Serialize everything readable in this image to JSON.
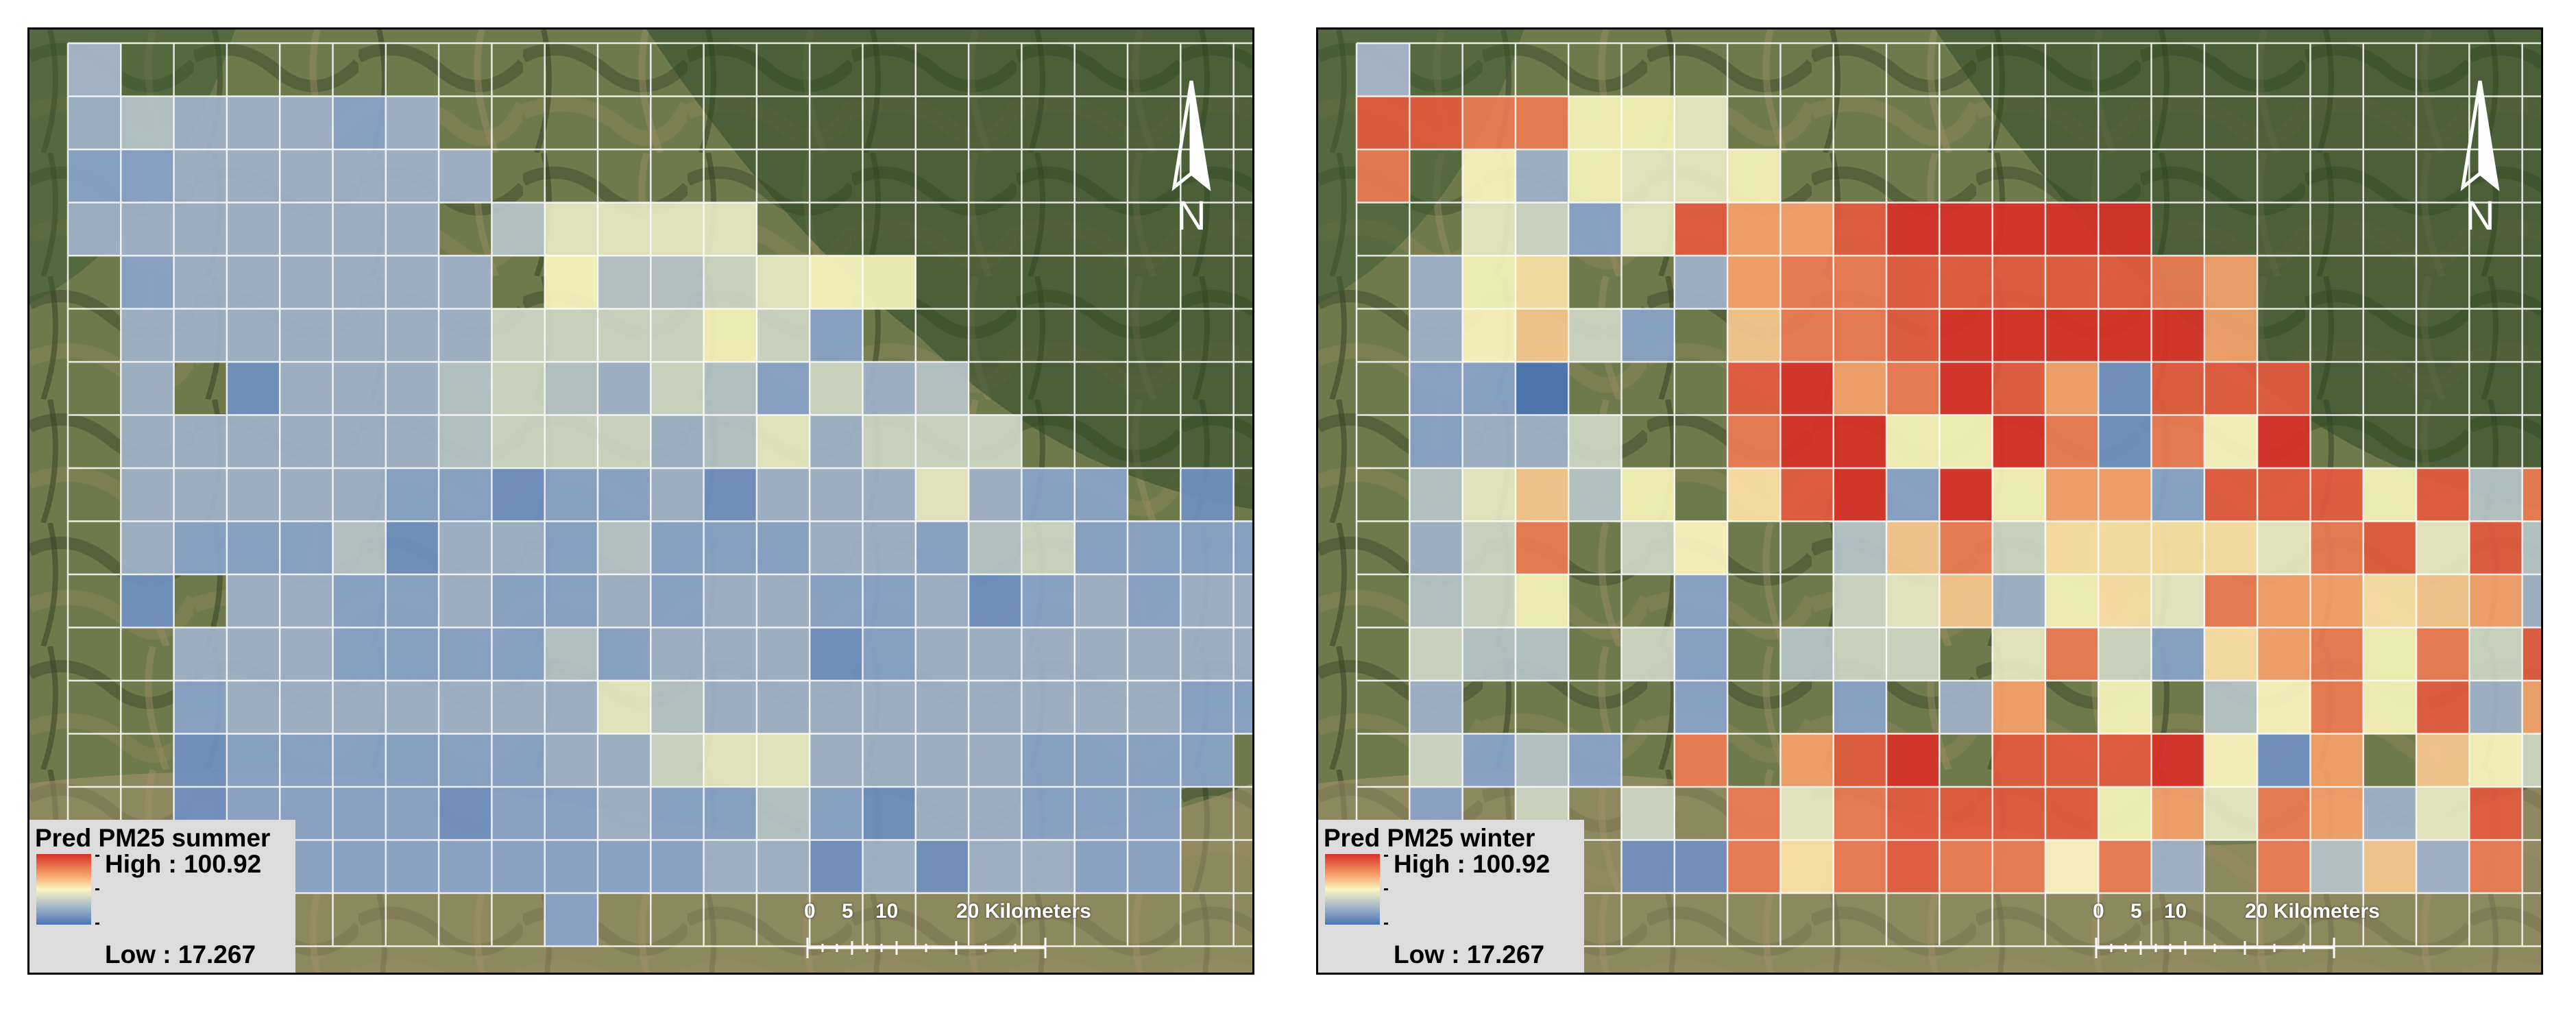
{
  "panels": [
    {
      "legend_title": "Pred PM25 summer",
      "high_label": "High : 100.92",
      "low_label": "Low : 17.267",
      "north_label": "N",
      "scale_labels": [
        "0",
        "5",
        "10",
        "20 Kilometers"
      ],
      "grid": [
        "o.......................",
        "3433323..................",
        "22333333.................",
        "3333333.46666.............",
        ".2333333.8445687..........",
        ".33333335555752...........",
        ".3.13334543542534.........",
        ".33333345553463555........",
        ".3333322122313336322.1....",
        ".3222413324222332452222...",
        ".1.3322322323322312323333.",
        "..33322224233312333333333.",
        "..233333336433333333322...",
        "..12222223356633332222....",
        "..1222212232242133222.....",
        "..1222222222331313322.....",
        "..2......2.................",
        "...................2222...."
      ]
    },
    {
      "legend_title": "Pred PM25 winter",
      "high_label": "High : 100.92",
      "low_label": "Low : 17.267",
      "north_label": "N",
      "scale_labels": [
        "0",
        "5",
        "10",
        "20 Kilometers"
      ],
      "grid": [
        "o.......................",
        "ddcc776..................",
        "c.837667.................",
        "..6526dbbdeeeee...........",
        ".379..3bccdddddcb.........",
        ".38a52.accdeeeeeb.........",
        ".220...debcedb1ddd........",
        ".2335..cee77ec1c8e........",
        ".46a47.9de2e7bb2ddd7d4c...",
        ".35c.58..4ac599996cd6d41..",
        ".457..2..56a3796cbb9ab32..",
        ".544.52.455.6c529bc7c5d4..",
        ".3....2..2.3b.7.48c7d3b...",
        ".5242.c.bde.ddde81b.a85...",
        ".2.5.5.c6cdddd7b6cb36d....",
        ".9.1.11c9cdcc8c3.c4a3c....",
        "..3.......................",
        ".........................."
      ]
    }
  ]
}
